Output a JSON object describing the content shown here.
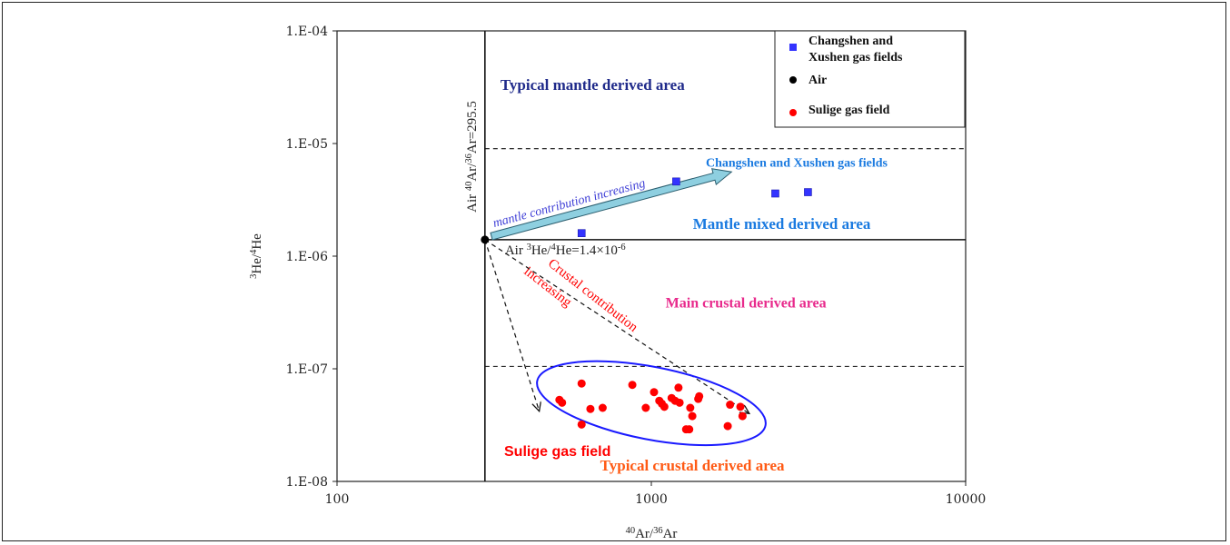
{
  "chart_data": {
    "type": "scatter",
    "xscale": "log",
    "yscale": "log",
    "xlim": [
      100,
      10000
    ],
    "ylim": [
      1e-08,
      0.0001
    ],
    "x_ticks": [
      {
        "value": 100,
        "label": "100"
      },
      {
        "value": 1000,
        "label": "1000"
      },
      {
        "value": 10000,
        "label": "10000"
      }
    ],
    "y_ticks": [
      {
        "value": 0.0001,
        "label": "1.E-04"
      },
      {
        "value": 1e-05,
        "label": "1.E-05"
      },
      {
        "value": 1e-06,
        "label": "1.E-06"
      },
      {
        "value": 1e-07,
        "label": "1.E-07"
      },
      {
        "value": 1e-08,
        "label": "1.E-08"
      }
    ],
    "xlabel": {
      "sup1": "40",
      "mid": "Ar/",
      "sup2": "36",
      "end": "Ar"
    },
    "ylabel": {
      "sup1": "3",
      "mid": "He/",
      "sup2": "4",
      "end": "He"
    },
    "legend": {
      "placement": "top-right",
      "entries": [
        {
          "line1": "Changshen and",
          "line2": "Xushen gas fields",
          "marker": "square",
          "color": "#3333ff"
        },
        {
          "line1": "Air",
          "line2": "",
          "marker": "circle",
          "color": "#000000"
        },
        {
          "line1": "Sulige gas field",
          "line2": "",
          "marker": "circle",
          "color": "#ff0000"
        }
      ]
    },
    "series": [
      {
        "name": "Changshen and Xushen gas fields",
        "marker": "square",
        "color": "#3333ff",
        "points": [
          [
            600,
            1.6e-06
          ],
          [
            1200,
            4.6e-06
          ],
          [
            2480,
            3.6e-06
          ],
          [
            3150,
            3.7e-06
          ]
        ]
      },
      {
        "name": "Air",
        "marker": "circle",
        "color": "#000000",
        "points": [
          [
            295.5,
            1.4e-06
          ]
        ]
      },
      {
        "name": "Sulige gas field",
        "marker": "circle",
        "color": "#ff0000",
        "points": [
          [
            600,
            7.4e-08
          ],
          [
            600,
            3.2e-08
          ],
          [
            510,
            5.3e-08
          ],
          [
            520,
            5e-08
          ],
          [
            640,
            4.4e-08
          ],
          [
            700,
            4.5e-08
          ],
          [
            870,
            7.2e-08
          ],
          [
            960,
            4.5e-08
          ],
          [
            1020,
            6.2e-08
          ],
          [
            1060,
            5.2e-08
          ],
          [
            1080,
            4.9e-08
          ],
          [
            1100,
            4.6e-08
          ],
          [
            1160,
            5.5e-08
          ],
          [
            1190,
            5.2e-08
          ],
          [
            1220,
            6.8e-08
          ],
          [
            1230,
            5e-08
          ],
          [
            1290,
            2.9e-08
          ],
          [
            1320,
            2.9e-08
          ],
          [
            1330,
            4.5e-08
          ],
          [
            1350,
            3.8e-08
          ],
          [
            1410,
            5.4e-08
          ],
          [
            1420,
            5.7e-08
          ],
          [
            1750,
            3.1e-08
          ],
          [
            1780,
            4.8e-08
          ],
          [
            1920,
            4.6e-08
          ],
          [
            1950,
            3.8e-08
          ]
        ]
      }
    ],
    "reference_lines": [
      {
        "kind": "vertical",
        "x": 295.5,
        "style": "solid",
        "label_pre": "Air ",
        "label_sup1": "40",
        "label_mid": "Ar/",
        "label_sup2": "36",
        "label_post": "Ar=295.5"
      },
      {
        "kind": "horizontal",
        "y": 1.4e-06,
        "x_from": 295.5,
        "style": "solid",
        "label_pre": "Air ",
        "label_sup1": "3",
        "label_mid": "He/",
        "label_sup2": "4",
        "label_post": "He=1.4×10",
        "label_sup3": "-6"
      },
      {
        "kind": "horizontal",
        "y": 9e-06,
        "x_from": 295.5,
        "style": "dashed"
      },
      {
        "kind": "horizontal",
        "y": 1.05e-07,
        "x_from": 295.5,
        "style": "dashed"
      }
    ],
    "arrows": [
      {
        "from": [
          310,
          1.5e-06
        ],
        "to": [
          1800,
          5.6e-06
        ],
        "style": "block",
        "fill": "#8ecfe0",
        "label": "mantle contribution increasing",
        "label_color": "#3d3dd6"
      },
      {
        "from": [
          295.5,
          1.4e-06
        ],
        "to": [
          440,
          4.2e-08
        ],
        "style": "dashed",
        "label": ""
      },
      {
        "from": [
          295.5,
          1.4e-06
        ],
        "to": [
          2050,
          4e-08
        ],
        "style": "dashed",
        "label": ""
      }
    ],
    "ellipse": {
      "center": [
        1000,
        4.95e-08
      ],
      "color": "#1a1aff",
      "label": "Sulige gas field",
      "label_color": "#ff0000"
    },
    "annotations": [
      {
        "text": "Typical mantle  derived area",
        "color": "#1f2a8a",
        "x": 650,
        "y": 3e-05,
        "bold": true,
        "size": 17
      },
      {
        "text": "Changshen and Xushen gas fields",
        "color": "#1a7ae0",
        "x": 2900,
        "y": 6.2e-06,
        "bold": true,
        "size": 14
      },
      {
        "text": "Mantle mixed derived area",
        "color": "#1a7ae0",
        "x": 2600,
        "y": 1.75e-06,
        "bold": true,
        "size": 17
      },
      {
        "text": "Main crustal derived area",
        "color": "#e82a8c",
        "x": 2000,
        "y": 3.5e-07,
        "bold": true,
        "size": 16
      },
      {
        "text": "Typical crustal derived area",
        "color": "#ff5a14",
        "x": 1350,
        "y": 1.25e-08,
        "bold": true,
        "size": 17
      },
      {
        "text": "Crustal contribution",
        "color": "#ff0000",
        "x": 640,
        "y": 4.2e-07,
        "bold": false,
        "size": 15,
        "rotate": 38
      },
      {
        "text": "increasing",
        "color": "#ff0000",
        "x": 460,
        "y": 5e-07,
        "bold": false,
        "size": 15,
        "rotate": 38
      }
    ]
  }
}
